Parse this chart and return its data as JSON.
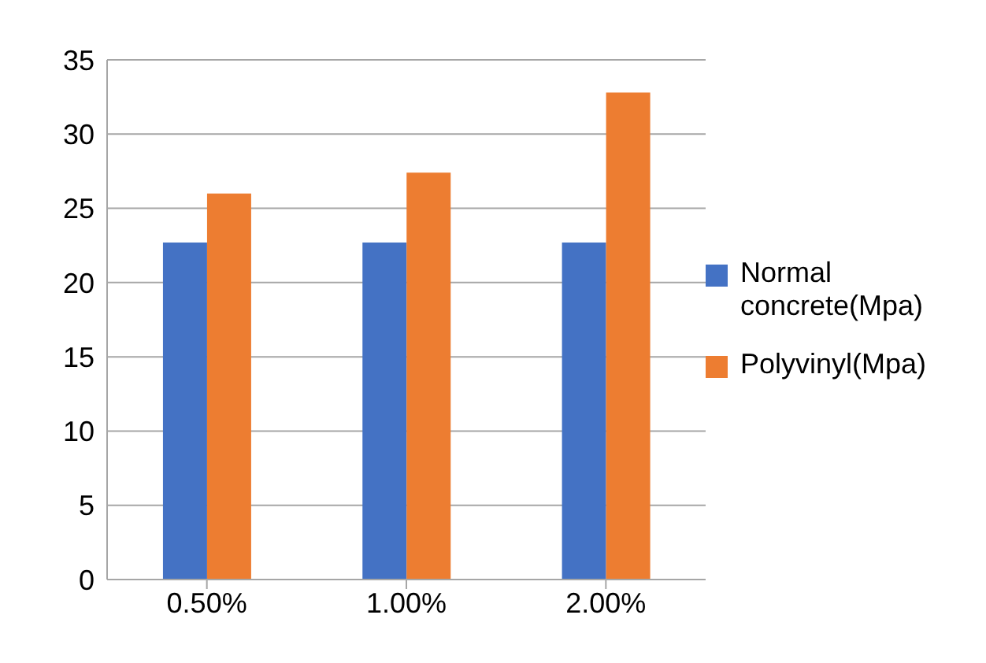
{
  "chart_data": {
    "type": "bar",
    "categories": [
      "0.50%",
      "1.00%",
      "2.00%"
    ],
    "series": [
      {
        "name": "Normal concrete(Mpa)",
        "color": "#4472c4",
        "values": [
          22.7,
          22.7,
          22.7
        ]
      },
      {
        "name": "Polyvinyl(Mpa)",
        "color": "#ed7d31",
        "values": [
          26,
          27.4,
          32.8
        ]
      }
    ],
    "ylim": [
      0,
      35
    ],
    "yticks": [
      0,
      5,
      10,
      15,
      20,
      25,
      30,
      35
    ],
    "grid": "y",
    "legend": "right"
  }
}
